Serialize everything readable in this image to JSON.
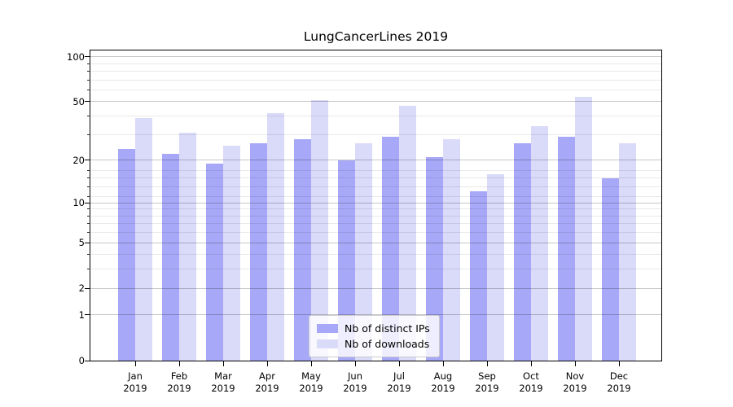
{
  "title": "LungCancerLines 2019",
  "chart_data": {
    "type": "bar",
    "title": "LungCancerLines 2019",
    "xlabel": "",
    "ylabel": "",
    "x_tick_year": "2019",
    "months": [
      "Jan",
      "Feb",
      "Mar",
      "Apr",
      "May",
      "Jun",
      "Jul",
      "Aug",
      "Sep",
      "Oct",
      "Nov",
      "Dec"
    ],
    "series": [
      {
        "name": "Nb of distinct IPs",
        "color": "#a8a8f8",
        "values": [
          24,
          22,
          19,
          26,
          28,
          20,
          29,
          21,
          12,
          26,
          29,
          15
        ]
      },
      {
        "name": "Nb of downloads",
        "color": "#dadaf9",
        "values": [
          39,
          31,
          25,
          42,
          51,
          26,
          47,
          28,
          16,
          34,
          54,
          26
        ]
      }
    ],
    "yscale": "log1p",
    "ylim": [
      0,
      110
    ],
    "y_major_ticks": [
      0,
      1,
      2,
      5,
      10,
      20,
      50,
      100
    ],
    "y_minor_ticks": [
      3,
      4,
      6,
      7,
      8,
      9,
      11,
      13,
      15,
      17,
      30,
      40,
      60,
      70,
      80,
      90
    ],
    "grid": true,
    "legend_position": "lower center"
  }
}
